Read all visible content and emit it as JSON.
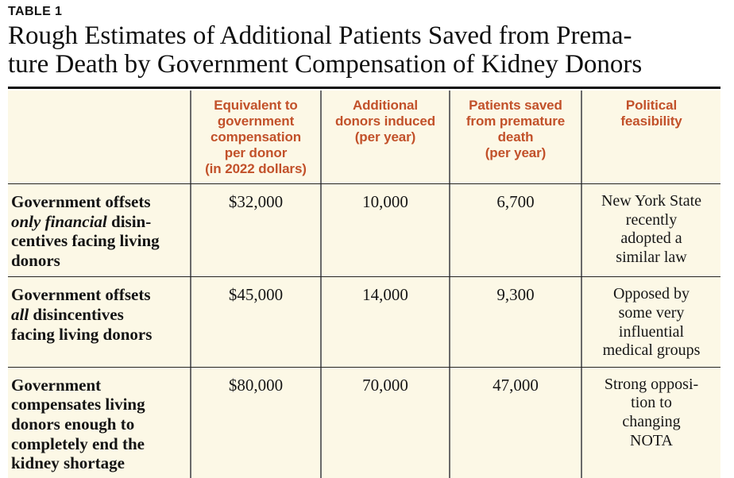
{
  "page": {
    "table_label": "TABLE 1",
    "title_line1": "Rough Estimates of Additional Patients Saved from Prema-",
    "title_line2": "ture Death by Government Compensation of Kidney Donors"
  },
  "colors": {
    "header_text": "#C2512A",
    "table_background": "#FCF8E6",
    "body_text": "#161616",
    "top_rule": "#0b0b0b",
    "divider": "#6a6a6a"
  },
  "table": {
    "headers": {
      "row_label": "",
      "col1_lines": [
        "Equivalent to",
        "government",
        "compensation",
        "per donor",
        "(in 2022 dollars)"
      ],
      "col2_lines": [
        "Additional",
        "donors induced",
        "(per year)"
      ],
      "col3_lines": [
        "Patients saved",
        "from premature",
        "death",
        "(per year)"
      ],
      "col4_lines": [
        "Political",
        "feasibility"
      ]
    },
    "rows": [
      {
        "label_line1": "Government offsets",
        "label_line2_italic": "only financial",
        "label_line2_rest": " disin-",
        "label_line3": "centives facing living",
        "label_line4": "donors",
        "equivalent_compensation": "$32,000",
        "additional_donors": "10,000",
        "patients_saved": "6,700",
        "political_feasibility_lines": [
          "New York State",
          "recently",
          "adopted a",
          "similar law"
        ]
      },
      {
        "label_line1": "Government offsets",
        "label_line2_italic": "all",
        "label_line2_rest": " disincentives",
        "label_line3": "facing living donors",
        "equivalent_compensation": "$45,000",
        "additional_donors": "14,000",
        "patients_saved": "9,300",
        "political_feasibility_lines": [
          "Opposed by",
          "some very",
          "influential",
          "medical groups"
        ]
      },
      {
        "label_lines": [
          "Government",
          "compensates living",
          "donors enough to",
          "completely end the",
          "kidney shortage"
        ],
        "equivalent_compensation": "$80,000",
        "additional_donors": "70,000",
        "patients_saved": "47,000",
        "political_feasibility_lines": [
          "Strong opposi-",
          "tion to",
          "changing",
          "NOTA"
        ]
      }
    ]
  }
}
